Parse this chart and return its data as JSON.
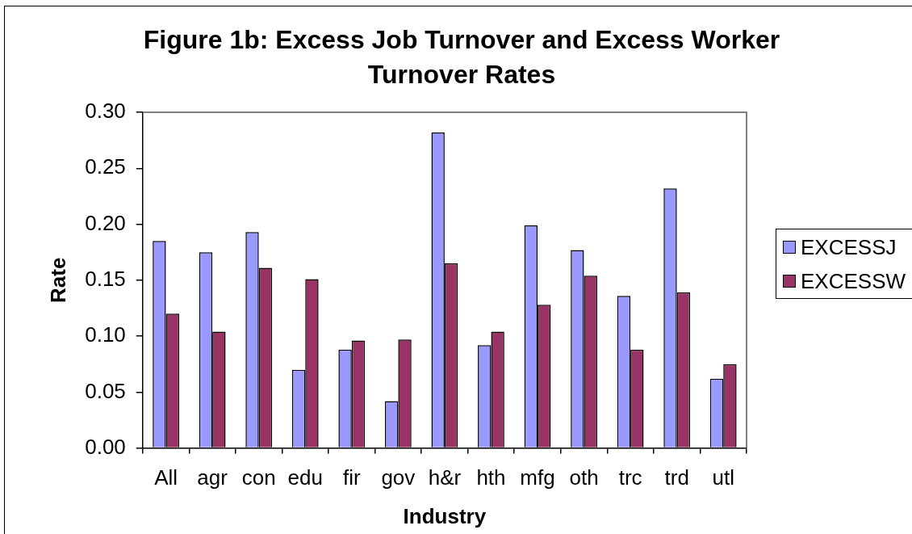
{
  "chart_data": {
    "type": "bar",
    "title": "Figure 1b: Excess Job Turnover and Excess Worker Turnover Rates",
    "xlabel": "Industry",
    "ylabel": "Rate",
    "categories": [
      "All",
      "agr",
      "con",
      "edu",
      "fir",
      "gov",
      "h&r",
      "hth",
      "mfg",
      "oth",
      "trc",
      "trd",
      "utl"
    ],
    "series": [
      {
        "name": "EXCESSJ",
        "color": "#9999ff",
        "values": [
          0.185,
          0.175,
          0.193,
          0.07,
          0.088,
          0.042,
          0.282,
          0.092,
          0.199,
          0.177,
          0.136,
          0.232,
          0.062
        ]
      },
      {
        "name": "EXCESSW",
        "color": "#993366",
        "values": [
          0.12,
          0.104,
          0.161,
          0.151,
          0.096,
          0.097,
          0.165,
          0.104,
          0.128,
          0.154,
          0.088,
          0.139,
          0.075
        ]
      }
    ],
    "ylim": [
      0,
      0.3
    ],
    "yticks": [
      {
        "value": 0,
        "label": "0.00"
      },
      {
        "value": 0.05,
        "label": "0.05"
      },
      {
        "value": 0.1,
        "label": "0.10"
      },
      {
        "value": 0.15,
        "label": "0.15"
      },
      {
        "value": 0.2,
        "label": "0.20"
      },
      {
        "value": 0.25,
        "label": "0.25"
      },
      {
        "value": 0.3,
        "label": "0.30"
      }
    ],
    "grid": false,
    "legend": "right"
  }
}
